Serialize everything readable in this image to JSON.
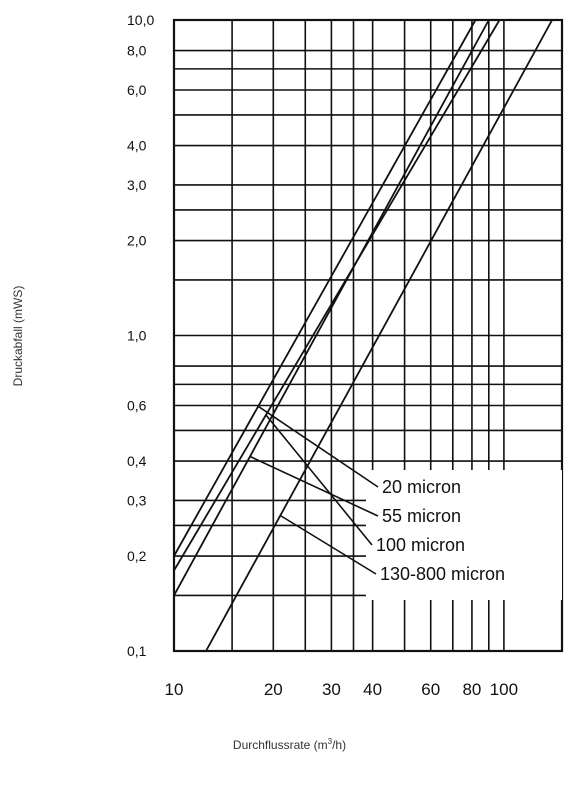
{
  "chart_data": {
    "type": "line",
    "xlabel_main": "Durchflussrate (m",
    "xlabel_sup": "3",
    "xlabel_end": "/h)",
    "ylabel": "Druckabfall (mWS)",
    "xscale": "log",
    "yscale": "log",
    "xlim": [
      10,
      150
    ],
    "ylim": [
      0.1,
      10
    ],
    "grid": true,
    "x_ticks": [
      {
        "value": 10,
        "label": "10"
      },
      {
        "value": 20,
        "label": "20"
      },
      {
        "value": 30,
        "label": "30"
      },
      {
        "value": 40,
        "label": "40"
      },
      {
        "value": 60,
        "label": "60"
      },
      {
        "value": 80,
        "label": "80"
      },
      {
        "value": 100,
        "label": "100"
      }
    ],
    "y_ticks": [
      {
        "value": 0.1,
        "label": "0,1"
      },
      {
        "value": 0.2,
        "label": "0,2"
      },
      {
        "value": 0.3,
        "label": "0,3"
      },
      {
        "value": 0.4,
        "label": "0,4"
      },
      {
        "value": 0.6,
        "label": "0,6"
      },
      {
        "value": 1.0,
        "label": "1,0"
      },
      {
        "value": 2.0,
        "label": "2,0"
      },
      {
        "value": 3.0,
        "label": "3,0"
      },
      {
        "value": 4.0,
        "label": "4,0"
      },
      {
        "value": 6.0,
        "label": "6,0"
      },
      {
        "value": 8.0,
        "label": "8,0"
      },
      {
        "value": 10.0,
        "label": "10,0"
      }
    ],
    "series": [
      {
        "name": "20 micron",
        "points": [
          [
            10,
            0.2
          ],
          [
            82,
            10
          ]
        ],
        "marker_x": 18
      },
      {
        "name": "55 micron",
        "points": [
          [
            10,
            0.15
          ],
          [
            90,
            10
          ]
        ],
        "marker_x": 17
      },
      {
        "name": "100 micron",
        "points": [
          [
            10,
            0.18
          ],
          [
            97,
            10
          ]
        ],
        "marker_x": 19
      },
      {
        "name": "130-800 micron",
        "points": [
          [
            12.5,
            0.1
          ],
          [
            140,
            10
          ]
        ],
        "marker_x": 21
      }
    ]
  }
}
